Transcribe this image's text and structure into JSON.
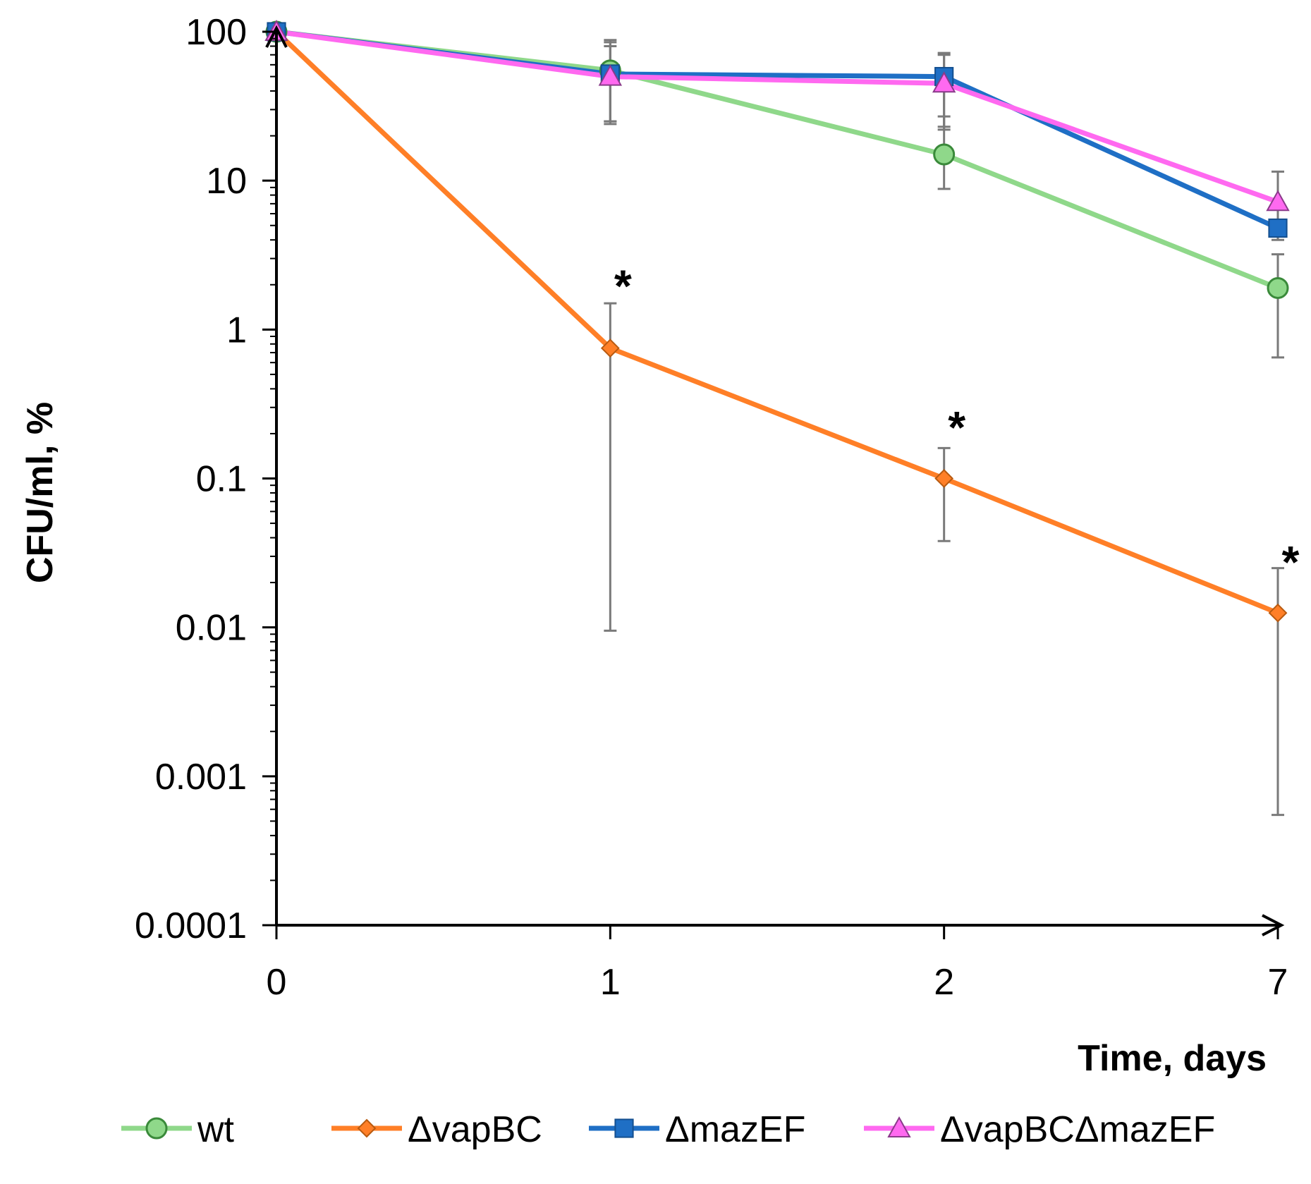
{
  "chart_data": {
    "type": "line",
    "title": "",
    "xlabel": "Time, days",
    "ylabel": "CFU/ml, %",
    "y_scale": "log",
    "ylim": [
      0.0001,
      100
    ],
    "grid": false,
    "legend_position": "bottom",
    "categories": [
      "0",
      "1",
      "2",
      "7"
    ],
    "y_ticks": [
      "0.0001",
      "0.001",
      "0.01",
      "0.1",
      "1",
      "10",
      "100"
    ],
    "series": [
      {
        "name": "wt",
        "color": "#8fd88a",
        "marker": "circle",
        "values": [
          100,
          55,
          15,
          1.9
        ],
        "err_low": [
          100,
          25,
          8.8,
          0.65
        ],
        "err_high": [
          100,
          88,
          27,
          3.2
        ]
      },
      {
        "name": "ΔvapBC",
        "color": "#ff7f27",
        "marker": "diamond",
        "values": [
          100,
          0.75,
          0.1,
          0.0125
        ],
        "err_low": [
          100,
          0.0095,
          0.038,
          0.00055
        ],
        "err_high": [
          100,
          1.5,
          0.16,
          0.025
        ]
      },
      {
        "name": "ΔmazEF",
        "color": "#1f6fc5",
        "marker": "square",
        "values": [
          100,
          52,
          50,
          4.8
        ],
        "err_low": [
          100,
          25,
          22,
          4.8
        ],
        "err_high": [
          100,
          85,
          72,
          4.8
        ]
      },
      {
        "name": "ΔvapBCΔmazEF",
        "color": "#ff69f0",
        "marker": "triangle",
        "values": [
          100,
          50,
          45,
          7.2
        ],
        "err_low": [
          100,
          24,
          23,
          4.0
        ],
        "err_high": [
          100,
          80,
          70,
          11.5
        ]
      }
    ],
    "annotations": [
      {
        "text": "*",
        "x": "1",
        "y": 2.5
      },
      {
        "text": "*",
        "x": "2",
        "y": 0.28
      },
      {
        "text": "*",
        "x": "7",
        "y": 0.035
      }
    ]
  }
}
